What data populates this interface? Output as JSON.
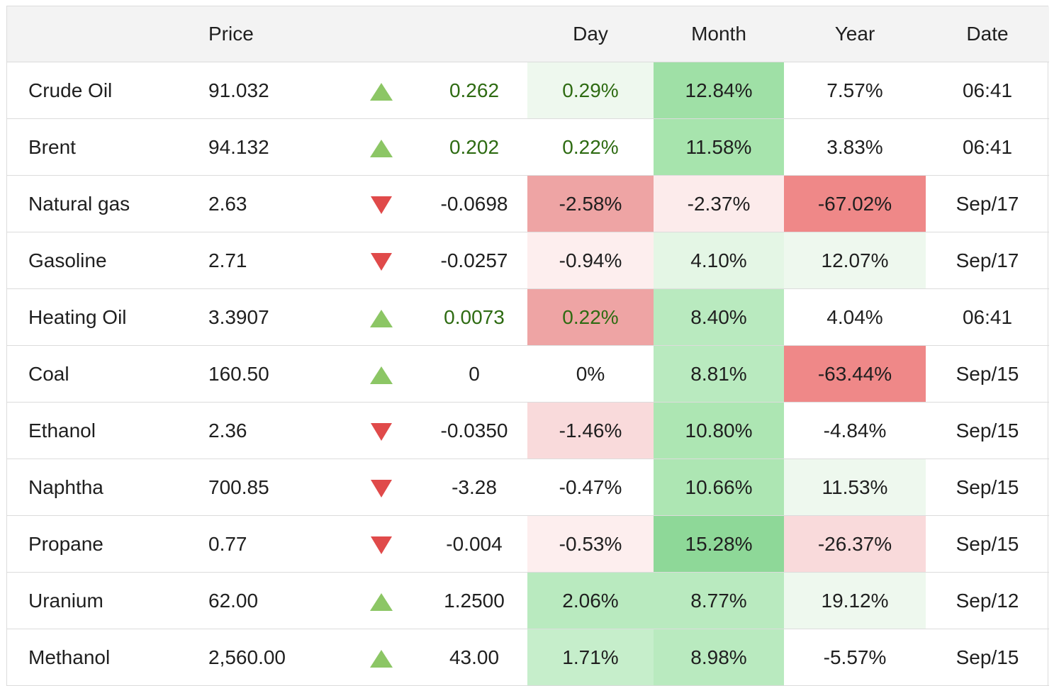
{
  "headers": [
    "",
    "Price",
    "",
    "",
    "Day",
    "Month",
    "Year",
    "Date"
  ],
  "rows": [
    {
      "name": "Crude Oil",
      "price": "91.032",
      "dir": "up",
      "change": "0.262",
      "change_positive": true,
      "day": "0.29%",
      "day_bg": "#eef8ee",
      "day_pos": true,
      "month": "12.84%",
      "month_bg": "#9fe0a6",
      "year": "7.57%",
      "year_bg": "#ffffff",
      "date": "06:41"
    },
    {
      "name": "Brent",
      "price": "94.132",
      "dir": "up",
      "change": "0.202",
      "change_positive": true,
      "day": "0.22%",
      "day_bg": "#ffffff",
      "day_pos": true,
      "month": "11.58%",
      "month_bg": "#a7e4ad",
      "year": "3.83%",
      "year_bg": "#ffffff",
      "date": "06:41"
    },
    {
      "name": "Natural gas",
      "price": "2.63",
      "dir": "down",
      "change": "-0.0698",
      "change_positive": false,
      "day": "-2.58%",
      "day_bg": "#eea4a4",
      "day_pos": false,
      "month": "-2.37%",
      "month_bg": "#fcebeb",
      "year": "-67.02%",
      "year_bg": "#ef8888",
      "date": "Sep/17"
    },
    {
      "name": "Gasoline",
      "price": "2.71",
      "dir": "down",
      "change": "-0.0257",
      "change_positive": false,
      "day": "-0.94%",
      "day_bg": "#fdeeee",
      "day_pos": false,
      "month": "4.10%",
      "month_bg": "#e4f6e5",
      "year": "12.07%",
      "year_bg": "#eef8ee",
      "date": "Sep/17"
    },
    {
      "name": "Heating Oil",
      "price": "3.3907",
      "dir": "up",
      "change": "0.0073",
      "change_positive": true,
      "day": "0.22%",
      "day_bg": "#eea4a4",
      "day_pos": true,
      "month": "8.40%",
      "month_bg": "#b9eabf",
      "year": "4.04%",
      "year_bg": "#ffffff",
      "date": "06:41"
    },
    {
      "name": "Coal",
      "price": "160.50",
      "dir": "up",
      "change": "0",
      "change_positive": false,
      "day": "0%",
      "day_bg": "#ffffff",
      "day_pos": false,
      "month": "8.81%",
      "month_bg": "#b9eabf",
      "year": "-63.44%",
      "year_bg": "#ef8888",
      "date": "Sep/15"
    },
    {
      "name": "Ethanol",
      "price": "2.36",
      "dir": "down",
      "change": "-0.0350",
      "change_positive": false,
      "day": "-1.46%",
      "day_bg": "#f9dadb",
      "day_pos": false,
      "month": "10.80%",
      "month_bg": "#ade6b3",
      "year": "-4.84%",
      "year_bg": "#ffffff",
      "date": "Sep/15"
    },
    {
      "name": "Naphtha",
      "price": "700.85",
      "dir": "down",
      "change": "-3.28",
      "change_positive": false,
      "day": "-0.47%",
      "day_bg": "#ffffff",
      "day_pos": false,
      "month": "10.66%",
      "month_bg": "#ade6b3",
      "year": "11.53%",
      "year_bg": "#eef8ee",
      "date": "Sep/15"
    },
    {
      "name": "Propane",
      "price": "0.77",
      "dir": "down",
      "change": "-0.004",
      "change_positive": false,
      "day": "-0.53%",
      "day_bg": "#fdeeee",
      "day_pos": false,
      "month": "15.28%",
      "month_bg": "#8ed898",
      "year": "-26.37%",
      "year_bg": "#f9dadb",
      "date": "Sep/15"
    },
    {
      "name": "Uranium",
      "price": "62.00",
      "dir": "up",
      "change": "1.2500",
      "change_positive": false,
      "day": "2.06%",
      "day_bg": "#b9eabf",
      "day_pos": false,
      "month": "8.77%",
      "month_bg": "#b9eabf",
      "year": "19.12%",
      "year_bg": "#eef8ee",
      "date": "Sep/12"
    },
    {
      "name": "Methanol",
      "price": "2,560.00",
      "dir": "up",
      "change": "43.00",
      "change_positive": false,
      "day": "1.71%",
      "day_bg": "#c6eecb",
      "day_pos": false,
      "month": "8.98%",
      "month_bg": "#b9eabf",
      "year": "-5.57%",
      "year_bg": "#ffffff",
      "date": "Sep/15"
    }
  ]
}
